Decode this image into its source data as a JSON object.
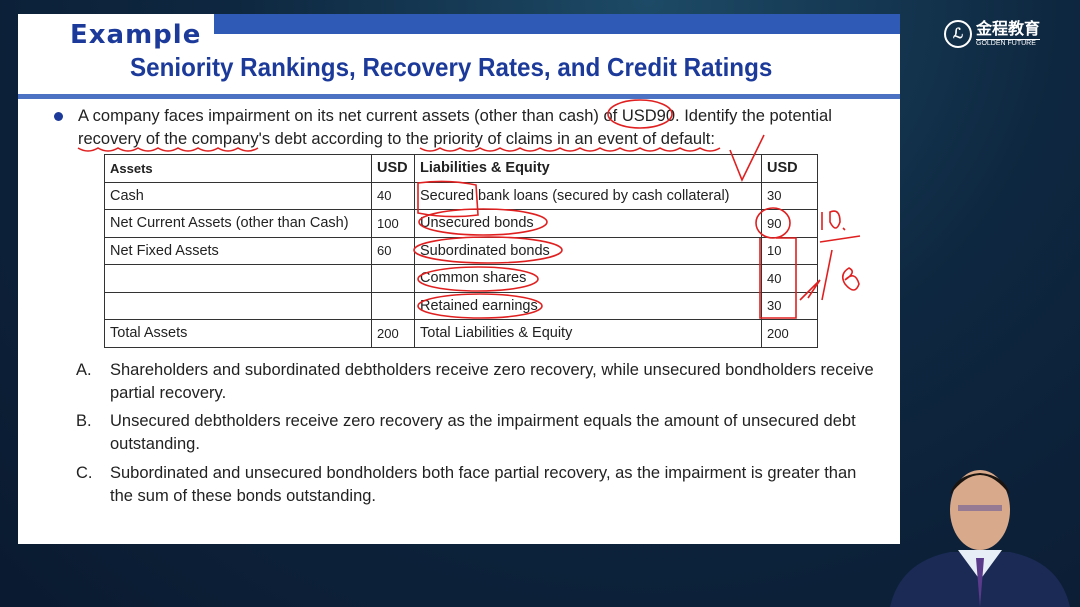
{
  "slide": {
    "heading": "Example",
    "title": "Seniority Rankings, Recovery Rates, and Credit Ratings",
    "question": "A company faces impairment on its net current assets (other than cash) of USD90. Identify the potential recovery of the company's debt according to the priority of claims in an event of default:",
    "table": {
      "headers": [
        "Assets",
        "USD",
        "Liabilities & Equity",
        "USD"
      ],
      "rows": [
        [
          "Cash",
          "40",
          "Secured bank loans (secured by cash collateral)",
          "30"
        ],
        [
          "Net Current Assets (other than Cash)",
          "100",
          "Unsecured bonds",
          "90"
        ],
        [
          "Net Fixed Assets",
          "60",
          "Subordinated bonds",
          "10"
        ],
        [
          "",
          "",
          "Common shares",
          "40"
        ],
        [
          "",
          "",
          "Retained earnings",
          "30"
        ],
        [
          "Total Assets",
          "200",
          "Total Liabilities & Equity",
          "200"
        ]
      ]
    },
    "options": [
      {
        "letter": "A.",
        "text": "Shareholders and subordinated debtholders receive zero recovery, while unsecured bondholders receive partial recovery."
      },
      {
        "letter": "B.",
        "text": "Unsecured debtholders receive zero recovery as the impairment equals the amount of unsecured debt outstanding."
      },
      {
        "letter": "C.",
        "text": "Subordinated and unsecured bondholders both face partial recovery, as the impairment is greater than the sum of these bonds outstanding."
      }
    ]
  },
  "logo": {
    "name": "金程教育",
    "sub": "GOLDEN FUTURE"
  },
  "colors": {
    "accent": "#1c3a9a",
    "band": "#2f5bb7",
    "ink": "#e02020"
  }
}
